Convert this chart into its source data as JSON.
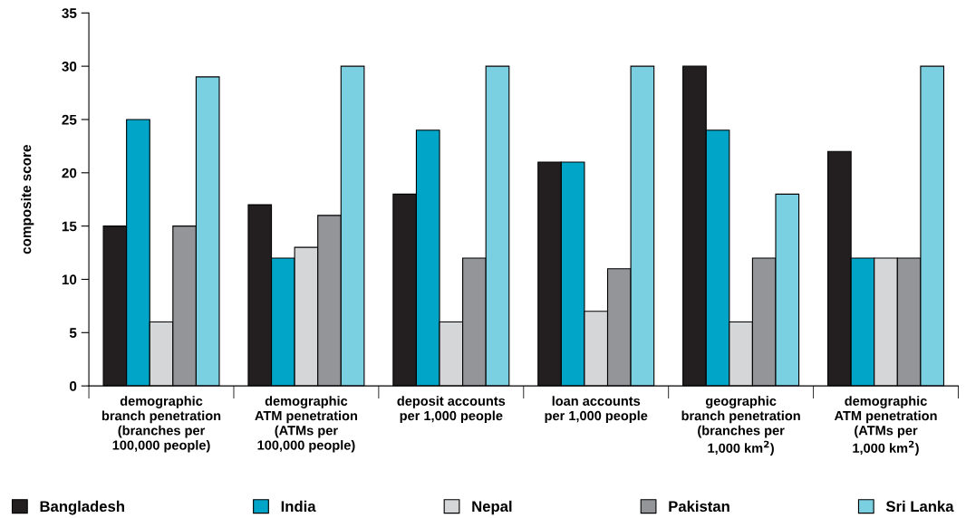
{
  "chart_data": {
    "type": "bar",
    "ylabel": "composite score",
    "categories": [
      "demographic\nbranch penetration\n(branches per\n100,000 people)",
      "demographic\nATM penetration\n(ATMs per\n100,000 people)",
      "deposit accounts\nper 1,000 people",
      "loan accounts\nper 1,000 people",
      "geographic\nbranch penetration\n(branches per\n1,000 km$^{2}$)",
      "demographic\nATM penetration\n(ATMs per\n1,000 km$^{2}$)"
    ],
    "series": [
      {
        "name": "Bangladesh",
        "color": "#231f20",
        "values": [
          15,
          17,
          18,
          21,
          30,
          22
        ]
      },
      {
        "name": "India",
        "color": "#00a5c8",
        "values": [
          25,
          12,
          24,
          21,
          24,
          12
        ]
      },
      {
        "name": "Nepal",
        "color": "#d5d6d8",
        "values": [
          6,
          13,
          6,
          7,
          6,
          12
        ]
      },
      {
        "name": "Pakistan",
        "color": "#939598",
        "values": [
          15,
          16,
          12,
          11,
          12,
          12
        ]
      },
      {
        "name": "Sri Lanka",
        "color": "#7acfe0",
        "values": [
          29,
          30,
          30,
          30,
          18,
          30
        ]
      }
    ],
    "ylim": [
      0,
      35
    ],
    "yticks": [
      0,
      5,
      10,
      15,
      20,
      25,
      30,
      35
    ],
    "legend": "bottom",
    "grid": false
  }
}
